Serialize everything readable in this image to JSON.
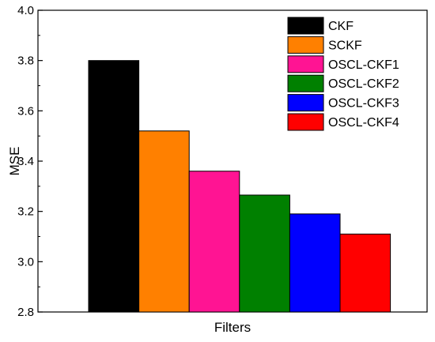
{
  "chart_data": {
    "type": "bar",
    "xlabel": "Filters",
    "ylabel": "MSE",
    "ylim": [
      2.8,
      4.0
    ],
    "yticks": [
      "2.8",
      "3.0",
      "3.2",
      "3.4",
      "3.6",
      "3.8",
      "4.0"
    ],
    "legend_position": "top-right",
    "grid": false,
    "series": [
      {
        "name": "CKF",
        "value": 3.8,
        "color": "#000000"
      },
      {
        "name": "SCKF",
        "value": 3.52,
        "color": "#ff8000"
      },
      {
        "name": "OSCL-CKF1",
        "value": 3.36,
        "color": "#ff1493"
      },
      {
        "name": "OSCL-CKF2",
        "value": 3.265,
        "color": "#008000"
      },
      {
        "name": "OSCL-CKF3",
        "value": 3.19,
        "color": "#0000ff"
      },
      {
        "name": "OSCL-CKF4",
        "value": 3.11,
        "color": "#ff0000"
      }
    ]
  }
}
